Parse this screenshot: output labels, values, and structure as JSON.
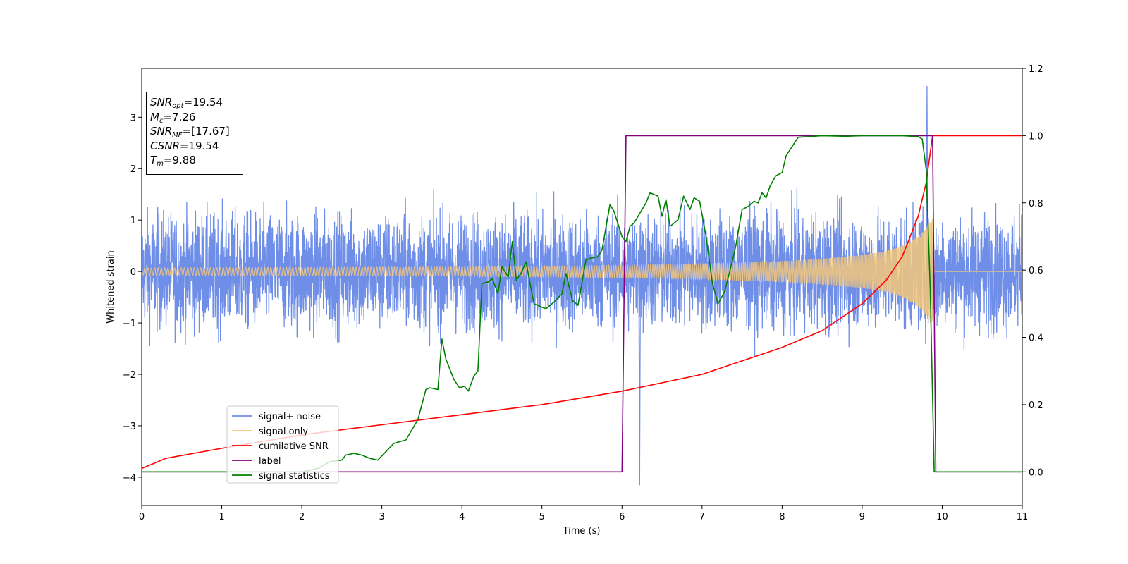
{
  "chart_data": {
    "type": "line",
    "xlabel": "Time (s)",
    "ylabel": "Whitened strain",
    "xlim": [
      0,
      11
    ],
    "ylim": [
      -4.55,
      3.95
    ],
    "y2lim": [
      -0.1,
      1.2
    ],
    "x_ticks": [
      "0",
      "1",
      "2",
      "3",
      "4",
      "5",
      "6",
      "7",
      "8",
      "9",
      "10",
      "11"
    ],
    "y_ticks": [
      "−4",
      "−3",
      "−2",
      "−1",
      "0",
      "1",
      "2",
      "3"
    ],
    "y2_ticks": [
      "0.0",
      "0.2",
      "0.4",
      "0.6",
      "0.8",
      "1.0",
      "1.2"
    ],
    "legend_position": "lower-left",
    "grid": false,
    "info_box": {
      "line1_sym": "SNR",
      "line1_sub": "opt",
      "line1_val": "=19.54",
      "line2_sym": "M",
      "line2_sub": "c",
      "line2_val": "=7.26",
      "line3_sym": "SNR",
      "line3_sub": "MF",
      "line3_val": "=[17.67]",
      "line4_sym": "CSNR",
      "line4_val": "=19.54",
      "line5_sym": "T",
      "line5_sub": "m",
      "line5_val": "=9.88"
    },
    "series": [
      {
        "name": "signal+ noise",
        "color": "#6f8ee8",
        "axis": "left",
        "noise_amplitude": 1.25,
        "peak_max": 3.6,
        "peak_min": -4.15
      },
      {
        "name": "signal only",
        "color": "#f5c77a",
        "axis": "left",
        "envelope": {
          "x": [
            0,
            2,
            4,
            6,
            7,
            8,
            8.5,
            9,
            9.3,
            9.5,
            9.7,
            9.8,
            9.85,
            9.88,
            9.9,
            11
          ],
          "y": [
            0.07,
            0.08,
            0.09,
            0.12,
            0.15,
            0.2,
            0.25,
            0.32,
            0.4,
            0.5,
            0.68,
            0.85,
            1.0,
            1.05,
            0.0,
            0.0
          ]
        }
      },
      {
        "name": "cumilative SNR",
        "color": "#ff0000",
        "axis": "right",
        "x": [
          0,
          0.3,
          1,
          2,
          3,
          4,
          5,
          6,
          7,
          7.5,
          8,
          8.5,
          9,
          9.3,
          9.5,
          9.7,
          9.8,
          9.88,
          9.9,
          11
        ],
        "y": [
          0.01,
          0.04,
          0.07,
          0.11,
          0.14,
          0.17,
          0.2,
          0.24,
          0.29,
          0.33,
          0.37,
          0.42,
          0.5,
          0.57,
          0.64,
          0.76,
          0.86,
          1.0,
          1.0,
          1.0
        ]
      },
      {
        "name": "label",
        "color": "#800080",
        "axis": "right",
        "x": [
          0,
          6.0,
          6.05,
          9.88,
          9.92,
          11
        ],
        "y": [
          0,
          0,
          1,
          1,
          0,
          0
        ]
      },
      {
        "name": "signal statistics",
        "color": "#008000",
        "axis": "right",
        "x": [
          0,
          0.5,
          1,
          1.5,
          2,
          2.2,
          2.35,
          2.5,
          2.55,
          2.65,
          2.75,
          2.85,
          2.95,
          3.05,
          3.15,
          3.3,
          3.45,
          3.55,
          3.6,
          3.7,
          3.75,
          3.8,
          3.9,
          3.97,
          4.03,
          4.08,
          4.15,
          4.2,
          4.25,
          4.33,
          4.38,
          4.45,
          4.5,
          4.58,
          4.63,
          4.68,
          4.75,
          4.8,
          4.9,
          5.0,
          5.05,
          5.15,
          5.25,
          5.3,
          5.38,
          5.45,
          5.55,
          5.6,
          5.7,
          5.75,
          5.85,
          5.9,
          6.0,
          6.05,
          6.1,
          6.15,
          6.2,
          6.3,
          6.35,
          6.45,
          6.5,
          6.55,
          6.6,
          6.7,
          6.77,
          6.85,
          6.9,
          6.97,
          7.05,
          7.13,
          7.2,
          7.28,
          7.35,
          7.42,
          7.5,
          7.58,
          7.65,
          7.7,
          7.75,
          7.8,
          7.85,
          7.92,
          8.0,
          8.05,
          8.2,
          8.5,
          8.8,
          9.0,
          9.5,
          9.7,
          9.75,
          9.8,
          9.85,
          9.9,
          9.95,
          11
        ],
        "y": [
          0.0,
          0.0,
          0.0,
          0.0,
          0.0,
          0.01,
          0.03,
          0.035,
          0.05,
          0.055,
          0.05,
          0.04,
          0.035,
          0.06,
          0.085,
          0.095,
          0.155,
          0.245,
          0.25,
          0.245,
          0.395,
          0.335,
          0.275,
          0.25,
          0.255,
          0.24,
          0.285,
          0.3,
          0.56,
          0.565,
          0.575,
          0.53,
          0.61,
          0.58,
          0.685,
          0.57,
          0.595,
          0.625,
          0.5,
          0.49,
          0.485,
          0.505,
          0.53,
          0.59,
          0.51,
          0.495,
          0.63,
          0.635,
          0.64,
          0.66,
          0.795,
          0.775,
          0.7,
          0.685,
          0.73,
          0.74,
          0.76,
          0.8,
          0.83,
          0.82,
          0.76,
          0.81,
          0.73,
          0.75,
          0.82,
          0.78,
          0.815,
          0.805,
          0.7,
          0.56,
          0.5,
          0.535,
          0.6,
          0.67,
          0.78,
          0.79,
          0.805,
          0.8,
          0.83,
          0.815,
          0.85,
          0.88,
          0.89,
          0.94,
          0.995,
          1.0,
          0.998,
          1.0,
          1.0,
          0.997,
          0.99,
          0.9,
          0.55,
          0.0,
          0.0,
          0.0
        ]
      }
    ]
  }
}
